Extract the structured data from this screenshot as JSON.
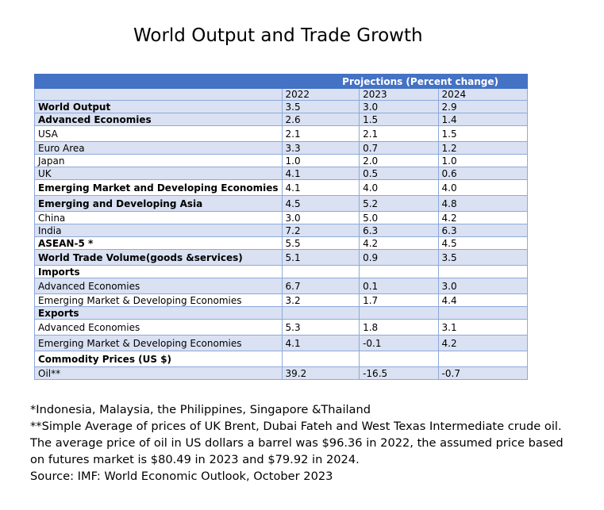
{
  "title": "World Output and Trade Growth",
  "table": {
    "banner": "Projections (Percent change)",
    "years": [
      "2022",
      "2023",
      "2024"
    ],
    "rows": [
      {
        "label": "World Output",
        "values": [
          "3.5",
          "3.0",
          "2.9"
        ],
        "bold": true
      },
      {
        "label": "Advanced Economies",
        "values": [
          "2.6",
          "1.5",
          "1.4"
        ],
        "bold": true
      },
      {
        "label": "USA",
        "values": [
          "2.1",
          "2.1",
          "1.5"
        ],
        "bold": false
      },
      {
        "label": "Euro Area",
        "values": [
          "3.3",
          "0.7",
          "1.2"
        ],
        "bold": false
      },
      {
        "label": "Japan",
        "values": [
          "1.0",
          "2.0",
          "1.0"
        ],
        "bold": false
      },
      {
        "label": "UK",
        "values": [
          "4.1",
          "0.5",
          "0.6"
        ],
        "bold": false
      },
      {
        "label": "Emerging Market and Developing Economies",
        "values": [
          "4.1",
          "4.0",
          "4.0"
        ],
        "bold": true
      },
      {
        "label": "Emerging and Developing Asia",
        "values": [
          "4.5",
          "5.2",
          "4.8"
        ],
        "bold": true
      },
      {
        "label": "China",
        "values": [
          "3.0",
          "5.0",
          "4.2"
        ],
        "bold": false
      },
      {
        "label": "India",
        "values": [
          "7.2",
          "6.3",
          "6.3"
        ],
        "bold": false
      },
      {
        "label": "ASEAN-5 *",
        "values": [
          "5.5",
          "4.2",
          "4.5"
        ],
        "bold": true
      },
      {
        "label": "World Trade Volume(goods &services)",
        "values": [
          "5.1",
          "0.9",
          "3.5"
        ],
        "bold": true
      },
      {
        "label": "Imports",
        "values": [
          "",
          "",
          ""
        ],
        "bold": true
      },
      {
        "label": "Advanced Economies",
        "values": [
          "6.7",
          "0.1",
          "3.0"
        ],
        "bold": false
      },
      {
        "label": "Emerging Market & Developing Economies",
        "values": [
          "3.2",
          "1.7",
          "4.4"
        ],
        "bold": false
      },
      {
        "label": "Exports",
        "values": [
          "",
          "",
          ""
        ],
        "bold": true
      },
      {
        "label": "Advanced Economies",
        "values": [
          "5.3",
          "1.8",
          "3.1"
        ],
        "bold": false
      },
      {
        "label": "Emerging Market & Developing Economies",
        "values": [
          "4.1",
          "-0.1",
          "4.2"
        ],
        "bold": false
      },
      {
        "label": "Commodity Prices (US $)",
        "values": [
          "",
          "",
          ""
        ],
        "bold": true
      },
      {
        "label": "Oil**",
        "values": [
          "39.2",
          "-16.5",
          "-0.7"
        ],
        "bold": false
      }
    ]
  },
  "notes": [
    "*Indonesia, Malaysia, the Philippines, Singapore &Thailand",
    "**Simple Average of prices of UK Brent, Dubai Fateh and West Texas Intermediate crude oil.",
    "The average price of oil in US dollars a barrel was $96.36 in 2022, the assumed price based",
    "on futures market is $80.49 in 2023 and $79.92 in 2024.",
    "Source: IMF: World Economic Outlook, October 2023"
  ]
}
